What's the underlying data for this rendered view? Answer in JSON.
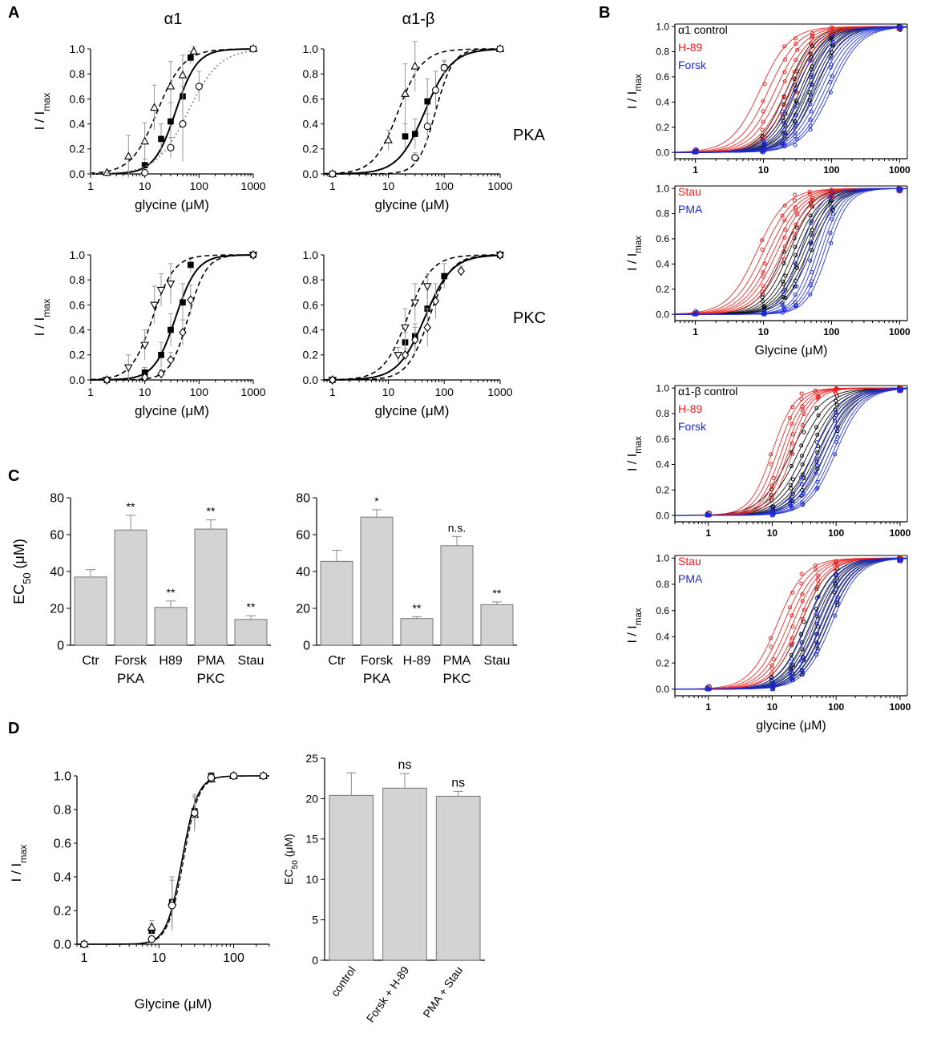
{
  "panel_letters": {
    "a": "A",
    "b": "B",
    "c": "C",
    "d": "D"
  },
  "panelA": {
    "col_titles": [
      "α1",
      "α1-β"
    ],
    "row_labels": [
      "PKA",
      "PKC"
    ],
    "ylabel": "I / Imax",
    "xlabel": "glycine (μM)"
  },
  "panelB": {
    "ylabel": "I / Imax",
    "xlabel_1": "Glycine (μM)",
    "xlabel_2": "glycine (μM)"
  },
  "panelC": {
    "ylabel": "EC50 (μM)",
    "group_labels": [
      "PKA",
      "PKC"
    ]
  },
  "panelD": {
    "ylabel_left": "I / Imax",
    "xlabel_left": "Glycine (μM)",
    "ylabel_right": "EC50 (μM)"
  },
  "colors": {
    "control": "#000000",
    "increase": "#e8201e",
    "decrease": "#1a2bd6",
    "bar": "#d3d3d3"
  },
  "chart_data": [
    {
      "id": "A1",
      "type": "scatter",
      "panel": "A",
      "xscale": "log",
      "xlim": [
        1,
        1000
      ],
      "ylim": [
        0,
        1.0
      ],
      "xticks": [
        1,
        10,
        100,
        1000
      ],
      "yticks": [
        0.0,
        0.2,
        0.4,
        0.6,
        0.8,
        1.0
      ],
      "series": [
        {
          "name": "control",
          "marker": "square",
          "line": "solid",
          "ec50": 37,
          "n": 2.2,
          "x": [
            10,
            20,
            30,
            50,
            70,
            1000
          ],
          "y": [
            0.07,
            0.28,
            0.42,
            0.62,
            0.93,
            1.0
          ],
          "err": [
            0.05,
            0.12,
            0.15,
            0.15,
            0.05,
            0
          ]
        },
        {
          "name": "H-89",
          "marker": "triangle-up",
          "line": "dash",
          "ec50": 17,
          "n": 1.8,
          "x": [
            2,
            5,
            10,
            15,
            30,
            50,
            80,
            1000
          ],
          "y": [
            0.01,
            0.14,
            0.26,
            0.53,
            0.7,
            0.79,
            0.98,
            1.0
          ],
          "err": [
            0,
            0.17,
            0.15,
            0.18,
            0.2,
            0.16,
            0.04,
            0
          ]
        },
        {
          "name": "Forsk",
          "marker": "circle",
          "line": "dot",
          "ec50": 63,
          "n": 1.5,
          "x": [
            10,
            30,
            50,
            100,
            1000
          ],
          "y": [
            0.01,
            0.21,
            0.4,
            0.7,
            1.0
          ],
          "err": [
            0,
            0.08,
            0.3,
            0.12,
            0
          ]
        }
      ]
    },
    {
      "id": "A2",
      "type": "scatter",
      "panel": "A",
      "xscale": "log",
      "xlim": [
        0.7,
        1000
      ],
      "ylim": [
        0,
        1.0
      ],
      "xticks": [
        1,
        10,
        100,
        1000
      ],
      "yticks": [
        0.0,
        0.2,
        0.4,
        0.6,
        0.8,
        1.0
      ],
      "series": [
        {
          "name": "control",
          "marker": "square",
          "line": "solid",
          "ec50": 45,
          "n": 1.8,
          "x": [
            1,
            20,
            30,
            50,
            100,
            1000
          ],
          "y": [
            0.0,
            0.3,
            0.32,
            0.58,
            0.85,
            1.0
          ],
          "err": [
            0,
            0.1,
            0.12,
            0.18,
            0.06,
            0
          ]
        },
        {
          "name": "H-89",
          "marker": "triangle-up",
          "line": "dash",
          "ec50": 15,
          "n": 2.0,
          "x": [
            1,
            10,
            20,
            30,
            1000
          ],
          "y": [
            0.0,
            0.27,
            0.64,
            0.86,
            1.0
          ],
          "err": [
            0,
            0.08,
            0.24,
            0.2,
            0
          ]
        },
        {
          "name": "Forsk",
          "marker": "circle",
          "line": "dash",
          "ec50": 70,
          "n": 2.8,
          "x": [
            1,
            30,
            50,
            70,
            100,
            1000
          ],
          "y": [
            0.0,
            0.13,
            0.38,
            0.67,
            0.85,
            1.0
          ],
          "err": [
            0,
            0.04,
            0.1,
            0.15,
            0.05,
            0
          ]
        }
      ]
    },
    {
      "id": "A3",
      "type": "scatter",
      "panel": "A",
      "xscale": "log",
      "xlim": [
        1,
        1000
      ],
      "ylim": [
        0,
        1.0
      ],
      "xticks": [
        1,
        10,
        100,
        1000
      ],
      "yticks": [
        0.0,
        0.2,
        0.4,
        0.6,
        0.8,
        1.0
      ],
      "series": [
        {
          "name": "control",
          "marker": "square",
          "line": "solid",
          "ec50": 37,
          "n": 2.2,
          "x": [
            2,
            10,
            20,
            30,
            50,
            70,
            1000
          ],
          "y": [
            0.0,
            0.06,
            0.2,
            0.4,
            0.62,
            0.92,
            1.0
          ],
          "err": [
            0,
            0.04,
            0.1,
            0.13,
            0.15,
            0.06,
            0
          ]
        },
        {
          "name": "Stau",
          "marker": "triangle-down",
          "line": "dash",
          "ec50": 14,
          "n": 2.2,
          "x": [
            2,
            5,
            10,
            15,
            20,
            30,
            1000
          ],
          "y": [
            0.0,
            0.1,
            0.28,
            0.6,
            0.72,
            0.77,
            1.0
          ],
          "err": [
            0,
            0.1,
            0.12,
            0.15,
            0.13,
            0.16,
            0
          ]
        },
        {
          "name": "PMA",
          "marker": "diamond",
          "line": "dash",
          "ec50": 63,
          "n": 2.6,
          "x": [
            2,
            10,
            20,
            30,
            50,
            70,
            1000
          ],
          "y": [
            0.0,
            0.02,
            0.05,
            0.16,
            0.38,
            0.64,
            1.0
          ],
          "err": [
            0,
            0,
            0.03,
            0.06,
            0.1,
            0.12,
            0
          ]
        }
      ]
    },
    {
      "id": "A4",
      "type": "scatter",
      "panel": "A",
      "xscale": "log",
      "xlim": [
        0.7,
        1000
      ],
      "ylim": [
        0,
        1.0
      ],
      "xticks": [
        1,
        10,
        100,
        1000
      ],
      "yticks": [
        0.0,
        0.2,
        0.4,
        0.6,
        0.8,
        1.0
      ],
      "series": [
        {
          "name": "control",
          "marker": "square",
          "line": "solid",
          "ec50": 45,
          "n": 1.8,
          "x": [
            1,
            20,
            30,
            50,
            100,
            1000
          ],
          "y": [
            0.0,
            0.3,
            0.35,
            0.57,
            0.83,
            1.0
          ],
          "err": [
            0,
            0.08,
            0.1,
            0.2,
            0.1,
            0
          ]
        },
        {
          "name": "Stau",
          "marker": "triangle-down",
          "line": "dash",
          "ec50": 22,
          "n": 2.0,
          "x": [
            1,
            15,
            20,
            30,
            50,
            1000
          ],
          "y": [
            0.0,
            0.2,
            0.42,
            0.62,
            0.75,
            1.0
          ],
          "err": [
            0,
            0.06,
            0.15,
            0.15,
            0.1,
            0
          ]
        },
        {
          "name": "PMA",
          "marker": "diamond",
          "line": "dash",
          "ec50": 54,
          "n": 2.2,
          "x": [
            1,
            20,
            30,
            50,
            70,
            200,
            1000
          ],
          "y": [
            0.0,
            0.2,
            0.32,
            0.42,
            0.63,
            0.87,
            1.0
          ],
          "err": [
            0,
            0.05,
            0.1,
            0.15,
            0.14,
            0.04,
            0
          ]
        }
      ]
    },
    {
      "id": "B1",
      "type": "line",
      "panel": "B",
      "xscale": "log",
      "xlim": [
        0.5,
        1300
      ],
      "ylim": [
        -0.05,
        1.02
      ],
      "xticks": [
        1,
        10,
        100,
        1000
      ],
      "yticks": [
        0.0,
        0.2,
        0.4,
        0.6,
        0.8,
        1.0
      ],
      "legend": [
        "α1 control",
        "H-89",
        "Forsk"
      ],
      "groups": [
        {
          "name": "α1 control",
          "color": "#000000",
          "ec50": [
            22,
            25,
            28,
            31,
            35,
            38,
            42,
            47,
            52,
            58
          ],
          "hill": 2.2
        },
        {
          "name": "H-89",
          "color": "#e8201e",
          "ec50": [
            9,
            12,
            15,
            18,
            22,
            26,
            30
          ],
          "hill": 2.0
        },
        {
          "name": "Forsk",
          "color": "#1a2bd6",
          "ec50": [
            30,
            38,
            45,
            55,
            62,
            70,
            80,
            90,
            100
          ],
          "hill": 2.0
        }
      ]
    },
    {
      "id": "B2",
      "type": "line",
      "panel": "B",
      "xscale": "log",
      "xlim": [
        0.5,
        1300
      ],
      "ylim": [
        -0.05,
        1.02
      ],
      "xticks": [
        1,
        10,
        100,
        1000
      ],
      "yticks": [
        0.0,
        0.2,
        0.4,
        0.6,
        0.8,
        1.0
      ],
      "legend": [
        "Stau",
        "PMA"
      ],
      "groups": [
        {
          "name": "control",
          "color": "#000000",
          "ec50": [
            20,
            24,
            28,
            32,
            36,
            40,
            45,
            50
          ],
          "hill": 2.2
        },
        {
          "name": "Stau",
          "color": "#e8201e",
          "ec50": [
            8,
            10,
            12,
            14,
            16,
            19,
            22
          ],
          "hill": 2.0
        },
        {
          "name": "PMA",
          "color": "#1a2bd6",
          "ec50": [
            35,
            45,
            55,
            62,
            70,
            78,
            88
          ],
          "hill": 2.8
        }
      ]
    },
    {
      "id": "B3",
      "type": "line",
      "panel": "B",
      "xscale": "log",
      "xlim": [
        0.3,
        1300
      ],
      "ylim": [
        -0.05,
        1.02
      ],
      "xticks": [
        1,
        10,
        100,
        1000
      ],
      "yticks": [
        0.0,
        0.2,
        0.4,
        0.6,
        0.8,
        1.0
      ],
      "legend": [
        "α1-β control",
        "H-89",
        "Forsk"
      ],
      "groups": [
        {
          "name": "α1-β control",
          "color": "#000000",
          "ec50": [
            20,
            26,
            32,
            38,
            45,
            52,
            60,
            70
          ],
          "hill": 1.8
        },
        {
          "name": "H-89",
          "color": "#e8201e",
          "ec50": [
            10,
            12,
            14,
            16,
            18,
            21
          ],
          "hill": 2.5
        },
        {
          "name": "Forsk",
          "color": "#1a2bd6",
          "ec50": [
            45,
            55,
            62,
            70,
            80,
            90,
            100
          ],
          "hill": 2.0
        }
      ]
    },
    {
      "id": "B4",
      "type": "line",
      "panel": "B",
      "xscale": "log",
      "xlim": [
        0.3,
        1300
      ],
      "ylim": [
        -0.05,
        1.02
      ],
      "xticks": [
        1,
        10,
        100,
        1000
      ],
      "yticks": [
        0.0,
        0.2,
        0.4,
        0.6,
        0.8,
        1.0
      ],
      "legend": [
        "Stau",
        "PMA"
      ],
      "groups": [
        {
          "name": "control",
          "color": "#000000",
          "ec50": [
            28,
            34,
            40,
            46,
            52,
            60,
            68,
            76
          ],
          "hill": 2.0
        },
        {
          "name": "Stau",
          "color": "#e8201e",
          "ec50": [
            12,
            15,
            18,
            21,
            25,
            28
          ],
          "hill": 2.0
        },
        {
          "name": "PMA",
          "color": "#1a2bd6",
          "ec50": [
            35,
            42,
            50,
            58,
            66,
            75,
            85
          ],
          "hill": 2.0
        }
      ]
    },
    {
      "id": "C1",
      "type": "bar",
      "panel": "C",
      "categories": [
        "Ctr",
        "Forsk",
        "H89",
        "PMA",
        "Stau"
      ],
      "values": [
        37,
        62.5,
        20.5,
        63,
        14
      ],
      "errors": [
        4,
        8,
        3.5,
        5,
        2
      ],
      "annotations": [
        "",
        "**",
        "**",
        "**",
        "**"
      ],
      "ylim": [
        0,
        80
      ],
      "yticks": [
        0,
        20,
        40,
        60,
        80
      ]
    },
    {
      "id": "C2",
      "type": "bar",
      "panel": "C",
      "categories": [
        "Ctr",
        "Forsk",
        "H-89",
        "PMA",
        "Stau"
      ],
      "values": [
        45.5,
        69.5,
        14.5,
        54,
        22
      ],
      "errors": [
        6,
        4,
        1,
        5,
        1.5
      ],
      "annotations": [
        "",
        "*",
        "**",
        "n.s.",
        "**"
      ],
      "ylim": [
        0,
        80
      ],
      "yticks": [
        0,
        20,
        40,
        60,
        80
      ]
    },
    {
      "id": "D1",
      "type": "scatter",
      "panel": "D",
      "xscale": "log",
      "xlim": [
        0.8,
        300
      ],
      "ylim": [
        0,
        1.0
      ],
      "xticks": [
        1,
        10,
        100
      ],
      "yticks": [
        0.0,
        0.2,
        0.4,
        0.6,
        0.8,
        1.0
      ],
      "series": [
        {
          "name": "control",
          "marker": "square",
          "ec50": 20.4,
          "n": 4.2,
          "x": [
            1,
            8,
            15,
            30,
            50,
            100,
            250
          ],
          "y": [
            0.0,
            0.08,
            0.25,
            0.79,
            1.0,
            1.0,
            1.0
          ],
          "err": [
            0,
            0.04,
            0.15,
            0.1,
            0.02,
            0,
            0
          ]
        },
        {
          "name": "Forsk + H-89",
          "marker": "triangle-up",
          "ec50": 21.3,
          "n": 4.2,
          "x": [
            1,
            8,
            15,
            30,
            50,
            100,
            250
          ],
          "y": [
            0.0,
            0.1,
            0.25,
            0.77,
            0.98,
            1.0,
            1.0
          ],
          "err": [
            0,
            0.04,
            0.15,
            0.1,
            0.02,
            0,
            0
          ]
        },
        {
          "name": "PMA + Stau",
          "marker": "circle",
          "ec50": 20.3,
          "n": 4.2,
          "x": [
            1,
            8,
            15,
            30,
            50,
            100,
            250
          ],
          "y": [
            0.0,
            0.03,
            0.23,
            0.78,
            0.99,
            1.0,
            1.0
          ],
          "err": [
            0,
            0.02,
            0.15,
            0.1,
            0.02,
            0,
            0
          ]
        }
      ]
    },
    {
      "id": "D2",
      "type": "bar",
      "panel": "D",
      "categories": [
        "control",
        "Forsk + H-89",
        "PMA + Stau"
      ],
      "values": [
        20.4,
        21.3,
        20.3
      ],
      "errors": [
        2.8,
        1.8,
        0.6
      ],
      "annotations": [
        "",
        "ns",
        "ns"
      ],
      "ylim": [
        0,
        25
      ],
      "yticks": [
        0,
        5,
        10,
        15,
        20,
        25
      ]
    }
  ]
}
